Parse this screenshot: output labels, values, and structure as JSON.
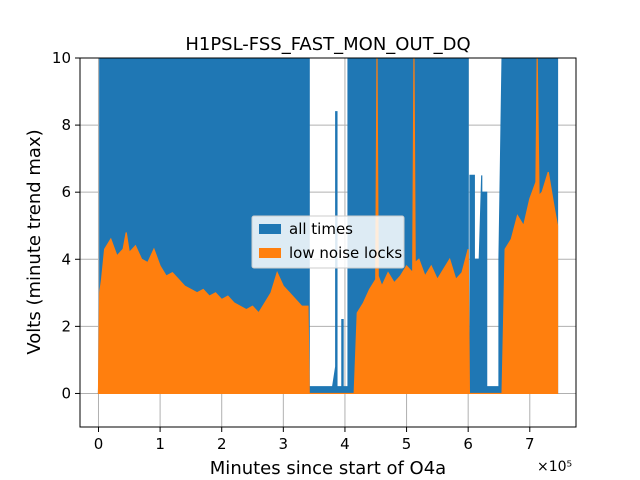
{
  "chart_data": {
    "type": "area",
    "title": "H1PSL-FSS_FAST_MON_OUT_DQ",
    "xlabel": "Minutes since start of O4a",
    "ylabel": "Volts (minute trend max)",
    "x_multiplier_label": "×10⁵",
    "xlim": [
      -30000,
      775000
    ],
    "ylim": [
      -1,
      10
    ],
    "x_ticks": [
      {
        "value": 0,
        "label": "0"
      },
      {
        "value": 100000,
        "label": "1"
      },
      {
        "value": 200000,
        "label": "2"
      },
      {
        "value": 300000,
        "label": "3"
      },
      {
        "value": 400000,
        "label": "4"
      },
      {
        "value": 500000,
        "label": "5"
      },
      {
        "value": 600000,
        "label": "6"
      },
      {
        "value": 700000,
        "label": "7"
      }
    ],
    "y_ticks": [
      {
        "value": 0,
        "label": "0"
      },
      {
        "value": 2,
        "label": "2"
      },
      {
        "value": 4,
        "label": "4"
      },
      {
        "value": 6,
        "label": "6"
      },
      {
        "value": 8,
        "label": "8"
      },
      {
        "value": 10,
        "label": "10"
      }
    ],
    "grid": true,
    "legend_position": "center",
    "series": [
      {
        "name": "all times",
        "color": "#1f77b4",
        "x": [
          0,
          2000,
          2000,
          342000,
          342000,
          380000,
          385000,
          385000,
          387000,
          387000,
          395000,
          395000,
          397000,
          397000,
          405000,
          405000,
          410000,
          410000,
          600000,
          600000,
          603000,
          603000,
          610000,
          610000,
          618000,
          622000,
          622000,
          630000,
          630000,
          650000,
          650000,
          655000,
          655000,
          745000
        ],
        "y": [
          0,
          1.5,
          10,
          10,
          0.2,
          0.2,
          0.8,
          8.4,
          8.4,
          0.2,
          0.2,
          2.2,
          2.2,
          0.2,
          0.2,
          10,
          10,
          10,
          10,
          0.2,
          0.2,
          6.5,
          6.5,
          4.0,
          4.0,
          6.5,
          6.0,
          6.0,
          0.2,
          0.2,
          4.0,
          10,
          10,
          10
        ]
      },
      {
        "name": "low noise locks",
        "color": "#ff7f0e",
        "x": [
          0,
          2000,
          5000,
          10000,
          20000,
          30000,
          40000,
          45000,
          50000,
          60000,
          70000,
          80000,
          90000,
          100000,
          110000,
          120000,
          130000,
          140000,
          150000,
          160000,
          170000,
          180000,
          190000,
          200000,
          210000,
          220000,
          230000,
          240000,
          250000,
          260000,
          270000,
          280000,
          290000,
          300000,
          310000,
          320000,
          330000,
          340000,
          342000,
          415000,
          420000,
          430000,
          440000,
          450000,
          452000,
          454000,
          460000,
          470000,
          480000,
          490000,
          500000,
          510000,
          512000,
          514000,
          520000,
          530000,
          540000,
          550000,
          560000,
          570000,
          580000,
          590000,
          600000,
          602000,
          655000,
          660000,
          670000,
          680000,
          690000,
          700000,
          710000,
          712000,
          715000,
          720000,
          730000,
          740000,
          745000
        ],
        "y": [
          0,
          3.0,
          3.4,
          4.3,
          4.6,
          4.1,
          4.3,
          4.8,
          4.2,
          4.4,
          4.0,
          3.9,
          4.3,
          3.8,
          3.5,
          3.6,
          3.4,
          3.2,
          3.1,
          3.0,
          3.1,
          2.9,
          3.0,
          2.8,
          2.9,
          2.7,
          2.6,
          2.5,
          2.6,
          2.4,
          2.7,
          3.0,
          3.6,
          3.2,
          3.0,
          2.8,
          2.6,
          2.6,
          0,
          0,
          2.4,
          2.7,
          3.1,
          3.4,
          10,
          3.5,
          3.2,
          3.6,
          3.3,
          3.5,
          3.8,
          3.6,
          10,
          3.9,
          4.0,
          3.5,
          3.8,
          3.4,
          3.7,
          4.0,
          3.4,
          3.6,
          4.3,
          0,
          0,
          4.3,
          4.6,
          5.3,
          5.0,
          5.8,
          6.3,
          10,
          5.9,
          6.0,
          6.6,
          5.5,
          5.0
        ]
      }
    ]
  }
}
